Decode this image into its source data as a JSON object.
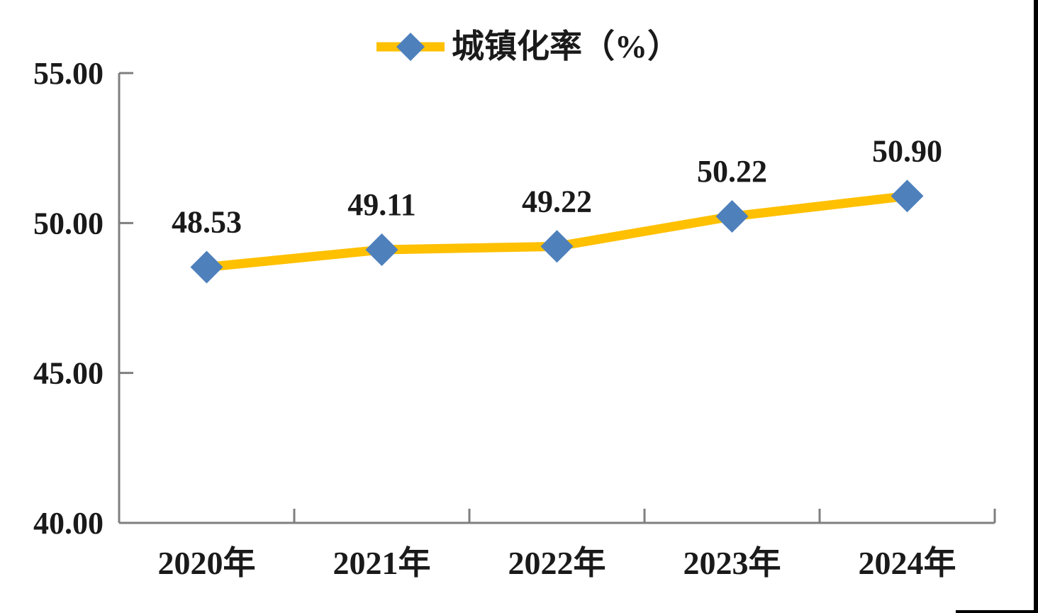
{
  "page": {
    "background": "#ffffff",
    "edge_color": "#000000"
  },
  "legend": {
    "label": "城镇化率（%）"
  },
  "chart_data": {
    "type": "line",
    "title": "",
    "xlabel": "",
    "ylabel": "",
    "categories": [
      "2020年",
      "2021年",
      "2022年",
      "2023年",
      "2024年"
    ],
    "series": [
      {
        "name": "城镇化率（%）",
        "values": [
          48.53,
          49.11,
          49.22,
          50.22,
          50.9
        ],
        "data_labels": [
          "48.53",
          "49.11",
          "49.22",
          "50.22",
          "50.90"
        ],
        "line_color": "#FFC000",
        "marker": "diamond",
        "marker_color": "#4E80BC"
      }
    ],
    "ylim": [
      40,
      55
    ],
    "yticks": [
      {
        "value": 55,
        "label": "55.00"
      },
      {
        "value": 50,
        "label": "50.00"
      },
      {
        "value": 45,
        "label": "45.00"
      },
      {
        "value": 40,
        "label": "40.00"
      }
    ],
    "grid": false,
    "legend_position": "top-center",
    "axis_color": "#7F7F7F",
    "text_color": "#1a1a1a"
  }
}
